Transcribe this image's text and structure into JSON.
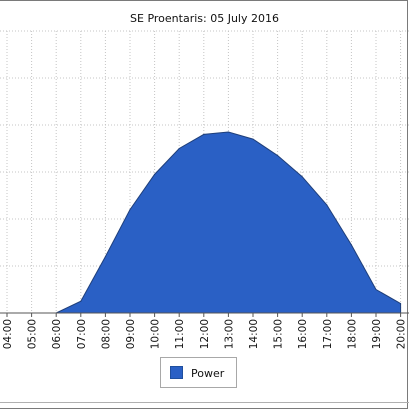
{
  "chart_data": {
    "type": "area",
    "title": "SE Proentaris: 05 July 2016",
    "x": [
      "04:00",
      "05:00",
      "06:00",
      "07:00",
      "08:00",
      "09:00",
      "10:00",
      "11:00",
      "12:00",
      "13:00",
      "14:00",
      "15:00",
      "16:00",
      "17:00",
      "18:00",
      "19:00",
      "20:00"
    ],
    "series": [
      {
        "name": "Power",
        "color": "#2a60c5",
        "values": [
          0,
          0,
          0,
          0.5,
          2.4,
          4.4,
          5.9,
          7.0,
          7.6,
          7.7,
          7.4,
          6.7,
          5.8,
          4.6,
          2.9,
          1.0,
          0.4
        ]
      }
    ],
    "ylim": [
      0,
      12
    ],
    "grid": true,
    "legend": "bottom-center"
  }
}
